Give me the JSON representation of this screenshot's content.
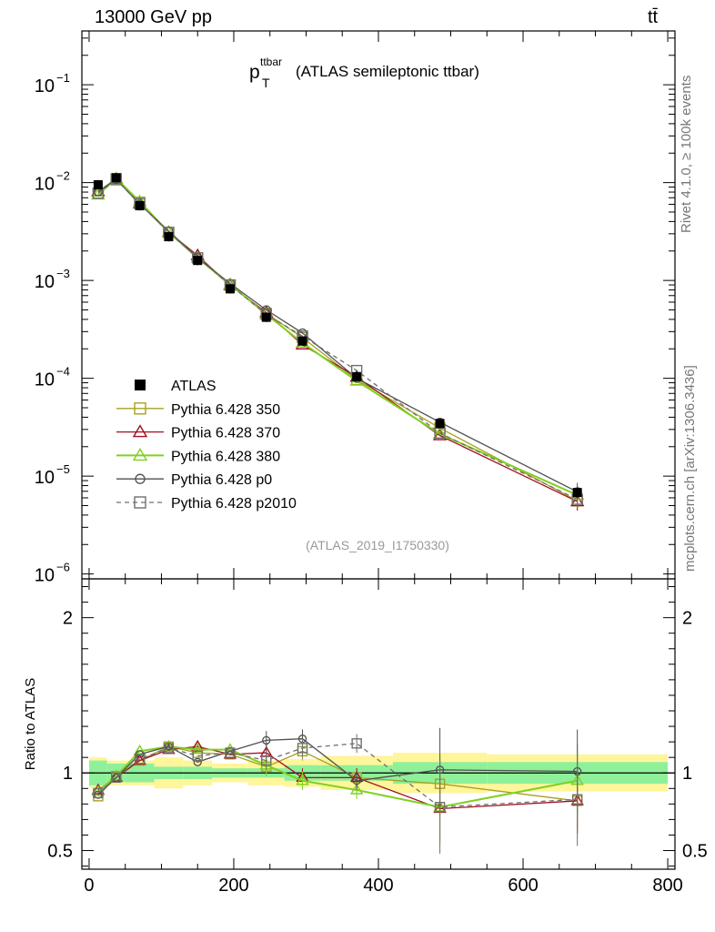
{
  "header": {
    "energy": "13000 GeV pp",
    "process": "tt̄"
  },
  "side_labels": {
    "rivet": "Rivet 4.1.0, ≥ 100k events",
    "mcplots": "mcplots.cern.ch [arXiv:1306.3436]"
  },
  "chart_data": {
    "type": "line",
    "title_main": "p",
    "title_sup": "ttbar",
    "title_sub": "T",
    "title_rest": "(ATLAS semileptonic ttbar)",
    "analysis_id": "(ATLAS_2019_I1750330)",
    "x": [
      12.5,
      37.5,
      70,
      110,
      150,
      195,
      245,
      295,
      370,
      485,
      675
    ],
    "x_ticks": [
      0,
      200,
      400,
      600,
      800
    ],
    "xlim": [
      -10,
      810
    ],
    "upper": {
      "yscale": "log",
      "ylim_exp": [
        -6.05,
        -0.45
      ],
      "y_ticks": [
        {
          "label": "10",
          "exp": "−1",
          "value_exp": -1
        },
        {
          "label": "10",
          "exp": "−2",
          "value_exp": -2
        },
        {
          "label": "10",
          "exp": "−3",
          "value_exp": -3
        },
        {
          "label": "10",
          "exp": "−4",
          "value_exp": -4
        },
        {
          "label": "10",
          "exp": "−5",
          "value_exp": -5
        },
        {
          "label": "10",
          "exp": "−6",
          "value_exp": -6
        }
      ],
      "data": {
        "name": "ATLAS",
        "values": [
          0.0095,
          0.0112,
          0.0058,
          0.0028,
          0.0016,
          0.00082,
          0.00042,
          0.00024,
          0.000104,
          3.45e-05,
          6.8e-06
        ]
      },
      "series": [
        {
          "name": "Pythia 6.428 350",
          "color": "#a8a020",
          "marker": "square",
          "dash": false,
          "values": [
            0.0078,
            0.011,
            0.0063,
            0.0031,
            0.0017,
            0.00089,
            0.00046,
            0.00026,
            9.7e-05,
            3.1e-05,
            5.6e-06
          ]
        },
        {
          "name": "Pythia 6.428 370",
          "color": "#a01020",
          "marker": "triangle",
          "dash": false,
          "values": [
            0.0081,
            0.0109,
            0.0061,
            0.0031,
            0.0018,
            0.00089,
            0.00047,
            0.00022,
            0.000103,
            2.6e-05,
            5.5e-06
          ]
        },
        {
          "name": "Pythia 6.428 380",
          "color": "#80d020",
          "marker": "triangle",
          "dash": false,
          "values": [
            0.0075,
            0.011,
            0.0064,
            0.0031,
            0.0017,
            0.00091,
            0.00045,
            0.00023,
            9.4e-05,
            2.7e-05,
            6.4e-06
          ]
        },
        {
          "name": "Pythia 6.428 p0",
          "color": "#505050",
          "marker": "circle",
          "dash": false,
          "values": [
            0.0081,
            0.0108,
            0.006,
            0.0032,
            0.0017,
            0.00093,
            0.0005,
            0.00029,
            0.0001,
            3.55e-05,
            6.9e-06
          ]
        },
        {
          "name": "Pythia 6.428 p2010",
          "color": "#707070",
          "marker": "opensquare",
          "dash": true,
          "values": [
            0.0078,
            0.0107,
            0.0061,
            0.0031,
            0.0017,
            0.0009,
            0.00045,
            0.00027,
            0.00012,
            2.75e-05,
            5.8e-06
          ]
        }
      ]
    },
    "lower": {
      "ylabel": "Ratio to ATLAS",
      "ylim": [
        0.38,
        2.25
      ],
      "y_ticks": [
        {
          "label": "0.5",
          "value": 0.5
        },
        {
          "label": "1",
          "value": 1
        },
        {
          "label": "2",
          "value": 2
        }
      ],
      "band_edges": [
        0,
        25,
        50,
        90,
        130,
        170,
        220,
        270,
        320,
        420,
        550,
        800
      ],
      "band_inner": [
        0.08,
        0.06,
        0.06,
        0.04,
        0.04,
        0.03,
        0.03,
        0.05,
        0.05,
        0.07,
        0.07
      ],
      "band_outer": [
        0.1,
        0.08,
        0.08,
        0.1,
        0.08,
        0.06,
        0.08,
        0.09,
        0.11,
        0.13,
        0.12
      ],
      "ratios": [
        {
          "name": "Pythia 6.428 350",
          "values": [
            0.85,
            0.98,
            1.08,
            1.17,
            1.13,
            1.12,
            1.04,
            1.14,
            0.97,
            0.93,
            0.82
          ]
        },
        {
          "name": "Pythia 6.428 370",
          "values": [
            0.89,
            0.97,
            1.08,
            1.15,
            1.17,
            1.12,
            1.13,
            0.97,
            0.97,
            0.77,
            0.82
          ]
        },
        {
          "name": "Pythia 6.428 380",
          "values": [
            0.88,
            0.98,
            1.14,
            1.17,
            1.15,
            1.15,
            1.05,
            0.95,
            0.89,
            0.78,
            0.95
          ]
        },
        {
          "name": "Pythia 6.428 p0",
          "values": [
            0.86,
            0.97,
            1.12,
            1.17,
            1.07,
            1.14,
            1.21,
            1.22,
            0.95,
            1.02,
            1.01
          ]
        },
        {
          "name": "Pythia 6.428 p2010",
          "values": [
            0.87,
            0.97,
            1.09,
            1.16,
            1.11,
            1.13,
            1.08,
            1.16,
            1.19,
            0.78,
            0.83
          ]
        }
      ]
    }
  }
}
